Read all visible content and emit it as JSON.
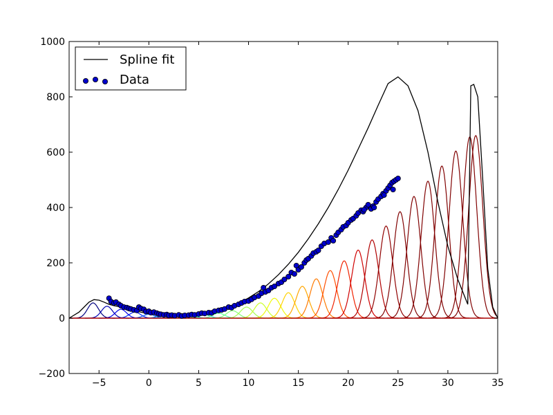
{
  "chart_data": {
    "type": "scatter",
    "title": "",
    "xlabel": "",
    "ylabel": "",
    "xlim": [
      -8,
      35
    ],
    "ylim": [
      -200,
      1000
    ],
    "grid": false,
    "legend_position": "top-left",
    "x_ticks": [
      -5,
      0,
      5,
      10,
      15,
      20,
      25,
      30,
      35
    ],
    "y_ticks": [
      -200,
      0,
      200,
      400,
      600,
      800,
      1000
    ],
    "legend": [
      {
        "label": "Spline fit",
        "kind": "line",
        "color": "#000000"
      },
      {
        "label": "Data",
        "kind": "scatter",
        "color": "#0000cc"
      }
    ],
    "spline_fit": {
      "color": "#000000",
      "x": [
        -8,
        -7,
        -6.5,
        -6,
        -5.5,
        -5,
        -4.5,
        -4,
        -3.5,
        -3,
        -2,
        -1,
        0,
        1,
        2,
        3,
        4,
        5,
        6,
        7,
        8,
        9,
        10,
        11,
        12,
        13,
        14,
        15,
        16,
        17,
        18,
        19,
        20,
        21,
        22,
        23,
        24,
        25,
        26,
        27,
        28,
        29,
        30,
        31,
        32,
        32.3,
        32.6,
        33,
        33.5,
        34,
        34.5,
        35
      ],
      "y": [
        0,
        22,
        40,
        58,
        67,
        65,
        58,
        50,
        45,
        42,
        32,
        23,
        16,
        11,
        9,
        9,
        10,
        13,
        19,
        28,
        39,
        54,
        73,
        96,
        124,
        157,
        195,
        238,
        287,
        341,
        400,
        465,
        535,
        611,
        688,
        769,
        848,
        872,
        840,
        750,
        600,
        420,
        260,
        140,
        50,
        840,
        845,
        800,
        500,
        180,
        40,
        0
      ]
    },
    "basis_functions": {
      "centers": [
        -5.6,
        -4.2,
        -2.8,
        -1.4,
        0,
        1.4,
        2.8,
        4.2,
        5.6,
        7,
        8.4,
        9.8,
        11.2,
        12.6,
        14,
        15.4,
        16.8,
        18.2,
        19.6,
        21,
        22.4,
        23.8,
        25.2,
        26.6,
        28,
        29.4,
        30.8,
        32.2,
        32.8
      ],
      "peaks": [
        55,
        43,
        32,
        22,
        14,
        10,
        8,
        9,
        12,
        18,
        27,
        40,
        55,
        72,
        92,
        115,
        142,
        172,
        207,
        246,
        283,
        333,
        385,
        440,
        495,
        550,
        604,
        655,
        660
      ],
      "colors": [
        "#000080",
        "#0000b2",
        "#0000e4",
        "#0024ff",
        "#0054ff",
        "#0084ff",
        "#00b4ff",
        "#0ae4f0",
        "#30ffc6",
        "#56ff9f",
        "#7fff77",
        "#a4ff52",
        "#caff2c",
        "#f0f90a",
        "#ffd200",
        "#ffa600",
        "#ff7a00",
        "#ff4e00",
        "#f02200",
        "#d00000",
        "#b00000",
        "#900000",
        "#800000",
        "#800000",
        "#800000",
        "#800000",
        "#800000",
        "#800000",
        "#800000"
      ],
      "sigma": 0.55
    },
    "scatter": {
      "color": "#0000cc",
      "points": [
        [
          -4,
          72
        ],
        [
          -3.8,
          60
        ],
        [
          -3.5,
          55
        ],
        [
          -3.3,
          58
        ],
        [
          -3,
          50
        ],
        [
          -2.8,
          45
        ],
        [
          -2.5,
          40
        ],
        [
          -2.2,
          38
        ],
        [
          -2,
          35
        ],
        [
          -1.8,
          33
        ],
        [
          -1.5,
          30
        ],
        [
          -1.2,
          28
        ],
        [
          -1,
          40
        ],
        [
          -0.8,
          35
        ],
        [
          -0.5,
          32
        ],
        [
          -0.3,
          24
        ],
        [
          0,
          25
        ],
        [
          0.2,
          20
        ],
        [
          0.5,
          22
        ],
        [
          0.8,
          18
        ],
        [
          1,
          15
        ],
        [
          1.2,
          14
        ],
        [
          1.5,
          12
        ],
        [
          1.8,
          13
        ],
        [
          2,
          10
        ],
        [
          2.3,
          11
        ],
        [
          2.6,
          9
        ],
        [
          3,
          12
        ],
        [
          3.3,
          8
        ],
        [
          3.6,
          10
        ],
        [
          4,
          11
        ],
        [
          4.3,
          13
        ],
        [
          4.6,
          12
        ],
        [
          5,
          15
        ],
        [
          5.3,
          18
        ],
        [
          5.6,
          17
        ],
        [
          6,
          20
        ],
        [
          6.3,
          19
        ],
        [
          6.6,
          25
        ],
        [
          7,
          28
        ],
        [
          7.3,
          30
        ],
        [
          7.6,
          33
        ],
        [
          8,
          40
        ],
        [
          8.3,
          38
        ],
        [
          8.6,
          45
        ],
        [
          9,
          50
        ],
        [
          9.3,
          55
        ],
        [
          9.6,
          60
        ],
        [
          10,
          62
        ],
        [
          10.3,
          68
        ],
        [
          10.6,
          75
        ],
        [
          11,
          80
        ],
        [
          11.3,
          90
        ],
        [
          11.5,
          110
        ],
        [
          11.7,
          95
        ],
        [
          12,
          100
        ],
        [
          12.3,
          110
        ],
        [
          12.6,
          115
        ],
        [
          13,
          125
        ],
        [
          13.3,
          130
        ],
        [
          13.6,
          140
        ],
        [
          14,
          150
        ],
        [
          14.3,
          165
        ],
        [
          14.6,
          160
        ],
        [
          14.8,
          190
        ],
        [
          15,
          175
        ],
        [
          15.3,
          185
        ],
        [
          15.6,
          200
        ],
        [
          15.8,
          210
        ],
        [
          16,
          215
        ],
        [
          16.3,
          225
        ],
        [
          16.5,
          235
        ],
        [
          16.8,
          240
        ],
        [
          17,
          245
        ],
        [
          17.3,
          260
        ],
        [
          17.6,
          270
        ],
        [
          18,
          275
        ],
        [
          18.3,
          290
        ],
        [
          18.5,
          280
        ],
        [
          18.8,
          300
        ],
        [
          19,
          310
        ],
        [
          19.3,
          320
        ],
        [
          19.5,
          330
        ],
        [
          19.8,
          335
        ],
        [
          20,
          345
        ],
        [
          20.3,
          355
        ],
        [
          20.5,
          360
        ],
        [
          20.8,
          370
        ],
        [
          21,
          380
        ],
        [
          21.3,
          390
        ],
        [
          21.5,
          385
        ],
        [
          21.8,
          400
        ],
        [
          22,
          410
        ],
        [
          22.3,
          395
        ],
        [
          22.5,
          405
        ],
        [
          22.8,
          420
        ],
        [
          23,
          430
        ],
        [
          23.3,
          440
        ],
        [
          23.5,
          450
        ],
        [
          23.8,
          460
        ],
        [
          24,
          470
        ],
        [
          24.2,
          480
        ],
        [
          24.4,
          490
        ],
        [
          24.6,
          495
        ],
        [
          24.8,
          500
        ],
        [
          25,
          505
        ],
        [
          24.5,
          465
        ],
        [
          23.6,
          445
        ],
        [
          22.6,
          400
        ],
        [
          21.6,
          392
        ]
      ]
    }
  }
}
